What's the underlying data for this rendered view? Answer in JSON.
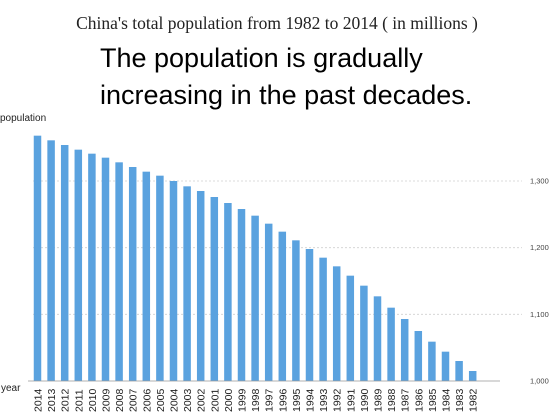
{
  "title": "China's total population from 1982 to 2014 ( in millions )",
  "subtitle_lines": [
    "The population is gradually",
    "increasing in the past decades."
  ],
  "colors": {
    "bar": "#5aa2df",
    "grid": "#d0d0d0",
    "axis": "#999999"
  },
  "chart_data": {
    "type": "bar",
    "ylabel": "population",
    "xlabel": "year",
    "ylim": [
      1000,
      1390
    ],
    "yticks": [
      1000,
      1100,
      1200,
      1300
    ],
    "ytick_labels": [
      "1,000",
      "1,100",
      "1,200",
      "1,300"
    ],
    "grid": true,
    "categories": [
      "2014",
      "2013",
      "2012",
      "2011",
      "2010",
      "2009",
      "2008",
      "2007",
      "2006",
      "2005",
      "2004",
      "2003",
      "2002",
      "2001",
      "2000",
      "1999",
      "1998",
      "1997",
      "1996",
      "1995",
      "1994",
      "1993",
      "1992",
      "1991",
      "1990",
      "1989",
      "1988",
      "1987",
      "1986",
      "1985",
      "1984",
      "1983",
      "1982"
    ],
    "values": [
      1368,
      1361,
      1354,
      1347,
      1341,
      1335,
      1328,
      1321,
      1314,
      1308,
      1300,
      1292,
      1285,
      1276,
      1267,
      1258,
      1248,
      1236,
      1224,
      1211,
      1198,
      1185,
      1172,
      1158,
      1143,
      1127,
      1110,
      1093,
      1075,
      1059,
      1044,
      1030,
      1015
    ]
  }
}
